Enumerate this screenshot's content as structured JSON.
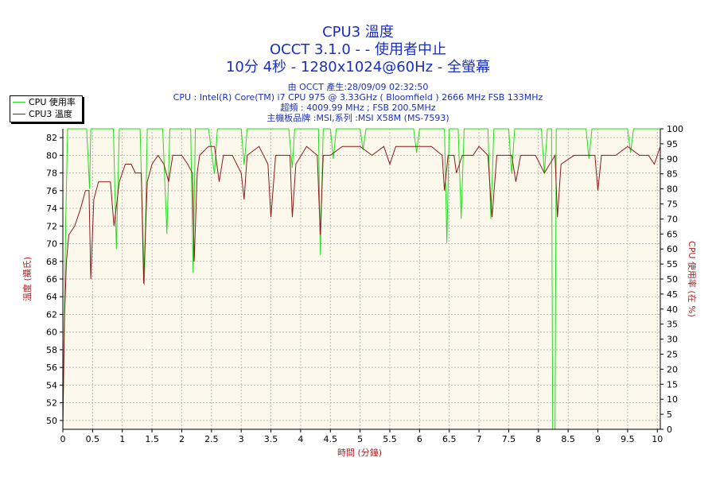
{
  "title": {
    "line1": "CPU3 溫度",
    "line2": "OCCT 3.1.0 -  - 使用者中止",
    "line3": "10分 4秒 - 1280x1024@60Hz - 全螢幕"
  },
  "info": {
    "line1": "由 OCCT 產生:28/09/09 02:32:50",
    "line2": "CPU : Intel(R) Core(TM) i7 CPU 975 @ 3.33GHz ( Bloomfield ) 2666 MHz FSB 133MHz",
    "line3": "超頻 : 4009.99 MHz ; FSB 200.5MHz",
    "line4": "主機板品牌 :MSI,系列 :MSI X58M (MS-7593)"
  },
  "colors": {
    "cpu_usage": "#22dd22",
    "cpu_temp": "#8b1a1a",
    "plot_bg": "#fdf8ec",
    "grid": "#b8b8b8",
    "title": "#1a2fbf",
    "axis_label": "#b22222"
  },
  "chart_data": {
    "type": "line",
    "legend": {
      "placement": "top-left",
      "entries": [
        "CPU 使用率",
        "CPU3 溫度"
      ]
    },
    "grid": true,
    "x": {
      "label": "時間 (分鐘)",
      "range": [
        0,
        10.05
      ],
      "ticks": [
        "0",
        "0.5",
        "1",
        "1.5",
        "2",
        "2.5",
        "3",
        "3.5",
        "4",
        "4.5",
        "5",
        "5.5",
        "6",
        "6.5",
        "7",
        "7.5",
        "8",
        "8.5",
        "9",
        "9.5",
        "10"
      ]
    },
    "y_left": {
      "label": "溫度 (攝氏)",
      "range": [
        49,
        83
      ],
      "ticks": [
        "50",
        "52",
        "54",
        "56",
        "58",
        "60",
        "62",
        "64",
        "66",
        "68",
        "70",
        "72",
        "74",
        "76",
        "78",
        "80",
        "82"
      ]
    },
    "y_right": {
      "label": "CPU 使用率 (在 %)",
      "range": [
        0,
        100
      ],
      "ticks": [
        "0",
        "5",
        "10",
        "15",
        "20",
        "25",
        "30",
        "35",
        "40",
        "45",
        "50",
        "55",
        "60",
        "65",
        "70",
        "75",
        "80",
        "85",
        "90",
        "95",
        "100"
      ]
    },
    "series": [
      {
        "name": "CPU 使用率",
        "axis": "right",
        "color": "#22dd22",
        "points": [
          [
            0,
            0
          ],
          [
            0.02,
            30
          ],
          [
            0.05,
            70
          ],
          [
            0.08,
            100
          ],
          [
            0.4,
            100
          ],
          [
            0.45,
            80
          ],
          [
            0.47,
            100
          ],
          [
            0.55,
            100
          ],
          [
            0.85,
            100
          ],
          [
            0.9,
            60
          ],
          [
            0.95,
            100
          ],
          [
            1.3,
            100
          ],
          [
            1.37,
            48
          ],
          [
            1.42,
            100
          ],
          [
            1.68,
            100
          ],
          [
            1.75,
            65
          ],
          [
            1.8,
            100
          ],
          [
            2.15,
            100
          ],
          [
            2.19,
            52
          ],
          [
            2.23,
            100
          ],
          [
            2.45,
            100
          ],
          [
            2.55,
            85
          ],
          [
            2.6,
            100
          ],
          [
            3.0,
            100
          ],
          [
            3.05,
            88
          ],
          [
            3.1,
            100
          ],
          [
            3.8,
            100
          ],
          [
            3.86,
            87
          ],
          [
            3.9,
            100
          ],
          [
            4.3,
            100
          ],
          [
            4.33,
            58
          ],
          [
            4.38,
            100
          ],
          [
            4.5,
            100
          ],
          [
            4.55,
            90
          ],
          [
            4.6,
            100
          ],
          [
            5.0,
            100
          ],
          [
            5.05,
            93
          ],
          [
            5.1,
            100
          ],
          [
            5.9,
            100
          ],
          [
            5.95,
            92
          ],
          [
            6.0,
            100
          ],
          [
            6.42,
            100
          ],
          [
            6.46,
            62
          ],
          [
            6.5,
            100
          ],
          [
            6.65,
            100
          ],
          [
            6.7,
            70
          ],
          [
            6.75,
            100
          ],
          [
            7.15,
            100
          ],
          [
            7.2,
            70
          ],
          [
            7.25,
            100
          ],
          [
            7.5,
            100
          ],
          [
            7.55,
            85
          ],
          [
            7.6,
            100
          ],
          [
            8.05,
            100
          ],
          [
            8.1,
            85
          ],
          [
            8.15,
            100
          ],
          [
            8.22,
            100
          ],
          [
            8.24,
            0
          ],
          [
            8.28,
            0
          ],
          [
            8.3,
            100
          ],
          [
            8.8,
            100
          ],
          [
            8.85,
            90
          ],
          [
            8.9,
            100
          ],
          [
            9.5,
            100
          ],
          [
            9.55,
            92
          ],
          [
            9.6,
            100
          ],
          [
            10.05,
            100
          ]
        ]
      },
      {
        "name": "CPU3 溫度",
        "axis": "left",
        "color": "#8b1a1a",
        "points": [
          [
            0,
            49.5
          ],
          [
            0.03,
            62
          ],
          [
            0.06,
            68
          ],
          [
            0.1,
            71
          ],
          [
            0.2,
            72
          ],
          [
            0.3,
            74
          ],
          [
            0.38,
            76
          ],
          [
            0.44,
            76
          ],
          [
            0.47,
            66
          ],
          [
            0.52,
            75
          ],
          [
            0.6,
            77
          ],
          [
            0.8,
            77
          ],
          [
            0.86,
            72
          ],
          [
            0.95,
            77
          ],
          [
            1.05,
            79
          ],
          [
            1.15,
            79
          ],
          [
            1.22,
            78
          ],
          [
            1.32,
            78
          ],
          [
            1.36,
            65.5
          ],
          [
            1.42,
            77
          ],
          [
            1.5,
            79
          ],
          [
            1.6,
            80
          ],
          [
            1.7,
            79
          ],
          [
            1.78,
            77
          ],
          [
            1.85,
            80
          ],
          [
            2.0,
            80
          ],
          [
            2.1,
            79
          ],
          [
            2.18,
            78
          ],
          [
            2.21,
            68
          ],
          [
            2.26,
            78
          ],
          [
            2.3,
            80
          ],
          [
            2.45,
            81
          ],
          [
            2.55,
            81
          ],
          [
            2.63,
            77
          ],
          [
            2.7,
            80
          ],
          [
            2.85,
            80
          ],
          [
            3.0,
            78
          ],
          [
            3.05,
            75
          ],
          [
            3.1,
            80
          ],
          [
            3.3,
            81
          ],
          [
            3.45,
            79
          ],
          [
            3.5,
            73
          ],
          [
            3.58,
            80
          ],
          [
            3.7,
            80
          ],
          [
            3.82,
            80
          ],
          [
            3.86,
            73
          ],
          [
            3.92,
            79
          ],
          [
            4.1,
            81
          ],
          [
            4.28,
            80
          ],
          [
            4.33,
            71
          ],
          [
            4.38,
            80
          ],
          [
            4.5,
            80
          ],
          [
            4.7,
            81
          ],
          [
            5.0,
            81
          ],
          [
            5.2,
            80
          ],
          [
            5.4,
            81
          ],
          [
            5.5,
            79
          ],
          [
            5.6,
            81
          ],
          [
            5.8,
            81
          ],
          [
            6.0,
            81
          ],
          [
            6.2,
            81
          ],
          [
            6.38,
            80
          ],
          [
            6.42,
            76
          ],
          [
            6.48,
            80
          ],
          [
            6.58,
            80
          ],
          [
            6.62,
            78
          ],
          [
            6.72,
            80
          ],
          [
            6.9,
            80
          ],
          [
            7.0,
            81
          ],
          [
            7.15,
            80
          ],
          [
            7.22,
            73
          ],
          [
            7.3,
            80
          ],
          [
            7.55,
            80
          ],
          [
            7.62,
            77
          ],
          [
            7.7,
            80
          ],
          [
            7.95,
            80
          ],
          [
            8.1,
            78
          ],
          [
            8.28,
            80
          ],
          [
            8.32,
            73
          ],
          [
            8.38,
            79
          ],
          [
            8.6,
            80
          ],
          [
            8.8,
            80
          ],
          [
            8.95,
            80
          ],
          [
            9.0,
            76
          ],
          [
            9.06,
            80
          ],
          [
            9.3,
            80
          ],
          [
            9.5,
            81
          ],
          [
            9.7,
            80
          ],
          [
            9.85,
            80
          ],
          [
            9.95,
            79
          ],
          [
            10.05,
            81
          ]
        ]
      }
    ]
  }
}
